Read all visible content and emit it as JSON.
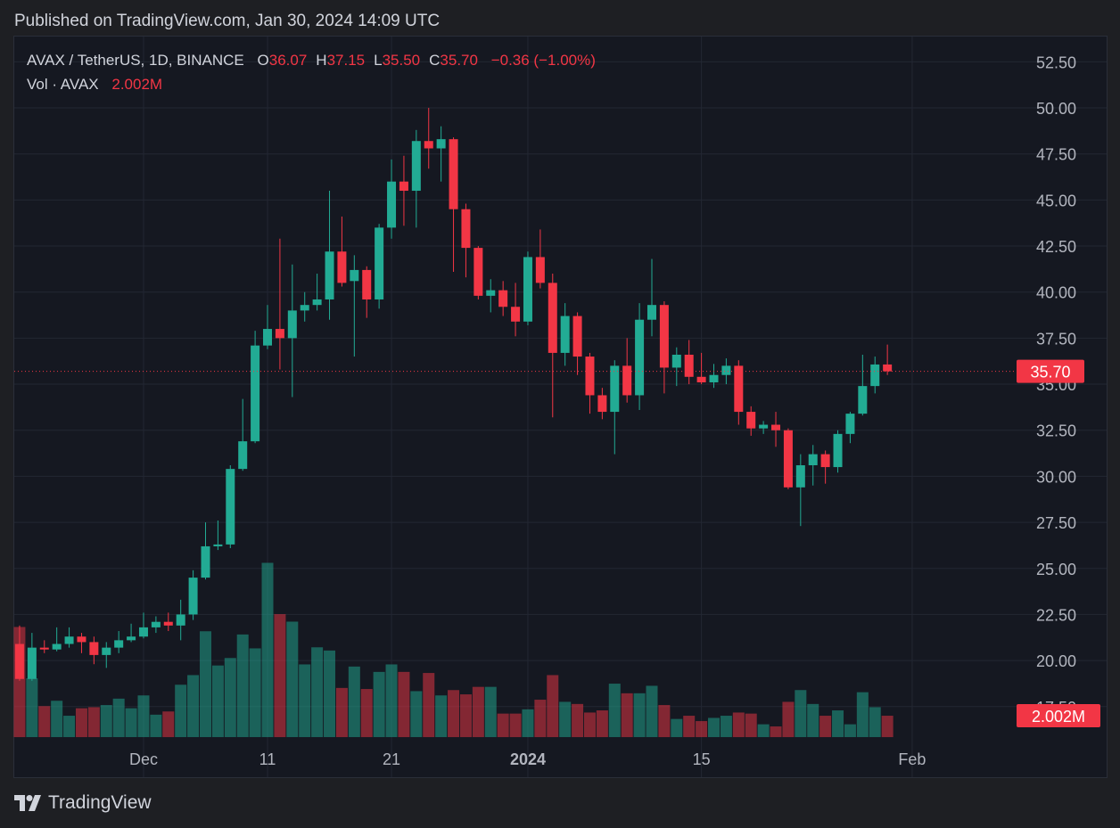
{
  "published": "Published on TradingView.com, Jan 30, 2024 14:09 UTC",
  "brand": "TradingView",
  "legend": {
    "items": [
      {
        "key": "O",
        "value": "36.07"
      },
      {
        "key": "H",
        "value": "37.15"
      },
      {
        "key": "L",
        "value": "35.50"
      },
      {
        "key": "C",
        "value": "35.70"
      }
    ],
    "change": "−0.36 (−1.00%)",
    "volume_title": "Vol · AVAX",
    "volume_value": "2.002M"
  },
  "chart_data": {
    "type": "candlestick",
    "title": "AVAX / TetherUS, 1D, BINANCE",
    "open": [
      20.9,
      19.0,
      20.7,
      20.6,
      20.9,
      21.3,
      21.0,
      20.3,
      20.7,
      21.1,
      21.3,
      21.8,
      22.1,
      21.9,
      22.5,
      24.5,
      26.2,
      26.3,
      30.4,
      31.9,
      37.1,
      38.0,
      37.5,
      39.0,
      39.3,
      39.6,
      42.2,
      40.6,
      41.2,
      39.6,
      43.5,
      46.0,
      45.5,
      48.2,
      47.8,
      48.3,
      44.5,
      42.4,
      39.8,
      40.1,
      39.2,
      38.4,
      41.9,
      40.5,
      36.7,
      38.7,
      36.5,
      34.4,
      33.5,
      36.0,
      34.4,
      38.5,
      39.3,
      35.9,
      36.6,
      35.4,
      35.1,
      35.5,
      36.0,
      33.5,
      32.6,
      32.8,
      32.5,
      29.4,
      30.6,
      31.2,
      30.5,
      32.3,
      33.4,
      34.9,
      36.07
    ],
    "high": [
      21.9,
      21.5,
      21.1,
      21.8,
      21.8,
      21.5,
      21.3,
      21.0,
      21.6,
      22.0,
      22.6,
      22.4,
      22.6,
      23.3,
      24.9,
      27.5,
      27.6,
      30.6,
      34.2,
      37.9,
      39.3,
      42.9,
      41.5,
      40.0,
      41.0,
      45.5,
      44.1,
      42.0,
      41.4,
      43.7,
      47.2,
      47.4,
      48.8,
      50.0,
      49.0,
      48.4,
      44.8,
      42.5,
      40.7,
      40.6,
      40.5,
      42.2,
      43.4,
      41.0,
      39.4,
      38.9,
      36.7,
      34.8,
      36.3,
      37.5,
      39.4,
      41.8,
      39.5,
      37.0,
      37.4,
      36.7,
      36.1,
      36.4,
      36.3,
      33.8,
      33.0,
      33.5,
      32.6,
      31.2,
      31.7,
      31.4,
      32.5,
      33.5,
      36.6,
      36.5,
      37.15
    ],
    "low": [
      18.9,
      18.9,
      20.4,
      20.5,
      20.7,
      20.4,
      19.8,
      19.6,
      20.4,
      21.0,
      21.2,
      21.5,
      21.6,
      21.1,
      22.2,
      24.4,
      26.0,
      26.1,
      30.3,
      31.8,
      36.9,
      35.8,
      34.3,
      38.4,
      39.0,
      38.5,
      40.3,
      36.5,
      38.6,
      39.1,
      42.9,
      43.6,
      43.5,
      46.7,
      46.0,
      41.1,
      40.8,
      39.6,
      38.9,
      38.7,
      37.6,
      38.2,
      40.2,
      33.2,
      36.0,
      35.5,
      33.4,
      33.1,
      31.2,
      34.0,
      33.6,
      37.6,
      34.5,
      34.9,
      35.0,
      35.0,
      34.8,
      35.0,
      32.8,
      32.2,
      32.3,
      31.6,
      29.3,
      27.3,
      29.5,
      29.6,
      30.2,
      31.8,
      33.3,
      34.5,
      35.5
    ],
    "close": [
      19.0,
      20.7,
      20.6,
      20.9,
      21.3,
      21.0,
      20.3,
      20.7,
      21.1,
      21.3,
      21.8,
      22.1,
      21.9,
      22.5,
      24.5,
      26.2,
      26.3,
      30.4,
      31.9,
      37.1,
      38.0,
      37.5,
      39.0,
      39.3,
      39.6,
      42.2,
      40.5,
      41.2,
      39.6,
      43.5,
      46.0,
      45.5,
      48.2,
      47.8,
      48.3,
      44.5,
      42.4,
      39.8,
      40.1,
      39.2,
      38.4,
      41.9,
      40.5,
      36.7,
      38.7,
      36.5,
      34.4,
      33.5,
      36.0,
      34.4,
      38.5,
      39.3,
      35.9,
      36.6,
      35.4,
      35.1,
      35.5,
      36.0,
      33.5,
      32.6,
      32.8,
      32.5,
      29.4,
      30.6,
      31.2,
      30.5,
      32.3,
      33.4,
      34.9,
      36.07,
      35.7
    ],
    "volume": [
      10.3,
      5.5,
      2.9,
      3.4,
      2.0,
      2.7,
      2.8,
      3.0,
      3.6,
      2.7,
      3.9,
      2.1,
      2.4,
      4.9,
      5.8,
      9.9,
      6.7,
      7.4,
      9.6,
      8.3,
      16.3,
      11.5,
      10.8,
      6.8,
      8.4,
      8.1,
      4.6,
      6.6,
      4.5,
      6.1,
      6.8,
      6.1,
      4.3,
      6.0,
      3.9,
      4.4,
      4.0,
      4.7,
      4.7,
      2.2,
      2.2,
      2.6,
      3.5,
      5.8,
      3.3,
      3.1,
      2.3,
      2.5,
      5.0,
      4.1,
      4.1,
      4.8,
      3.0,
      1.7,
      2.0,
      1.5,
      1.8,
      2.0,
      2.3,
      2.2,
      1.2,
      1.0,
      3.3,
      4.4,
      3.1,
      2.0,
      2.5,
      1.2,
      4.2,
      2.8,
      2.002
    ],
    "volume_lim": [
      -0.83,
      65.6
    ],
    "xlim": [
      -0.5,
      79.7
    ],
    "xticks": [
      {
        "value": 10,
        "label": "Dec"
      },
      {
        "value": 20,
        "label": "11"
      },
      {
        "value": 30,
        "label": "21"
      },
      {
        "value": 41,
        "label": "2024"
      },
      {
        "value": 55,
        "label": "15"
      },
      {
        "value": 72,
        "label": "Feb"
      }
    ],
    "ylim": [
      15.36,
      53.92
    ],
    "yticks": [
      {
        "value": 17.5,
        "label": "17.50"
      },
      {
        "value": 20,
        "label": "20.00"
      },
      {
        "value": 22.5,
        "label": "22.50"
      },
      {
        "value": 25,
        "label": "25.00"
      },
      {
        "value": 27.5,
        "label": "27.50"
      },
      {
        "value": 30,
        "label": "30.00"
      },
      {
        "value": 32.5,
        "label": "32.50"
      },
      {
        "value": 35,
        "label": "35.00"
      },
      {
        "value": 37.5,
        "label": "37.50"
      },
      {
        "value": 40,
        "label": "40.00"
      },
      {
        "value": 42.5,
        "label": "42.50"
      },
      {
        "value": 45,
        "label": "45.00"
      },
      {
        "value": 47.5,
        "label": "47.50"
      },
      {
        "value": 50,
        "label": "50.00"
      },
      {
        "value": 52.5,
        "label": "52.50"
      }
    ],
    "last_price": {
      "value": 35.7,
      "label": "35.70"
    },
    "grid": true,
    "colors": {
      "up": "#22ab94",
      "down": "#f23645"
    }
  }
}
